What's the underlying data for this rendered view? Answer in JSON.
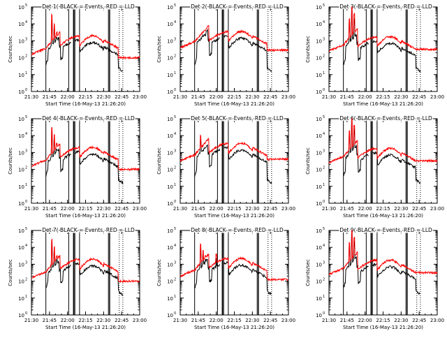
{
  "x_ticks": [
    "21:30",
    "21:45",
    "22:00",
    "22:15",
    "22:30",
    "22:45",
    "23:00"
  ],
  "y_tick_exponents": [
    "0",
    "1",
    "2",
    "3",
    "4",
    "5"
  ],
  "y_tick_base": "10",
  "ylabel": "Counts/sec",
  "xlabel": "Start Time (16-May-13 21:26:20)",
  "colors": {
    "events": "#000000",
    "lld": "#ff0000",
    "axes": "#000000"
  },
  "chart_data": [
    {
      "type": "line",
      "title": "Det 1(-BLACK = Events, RED = LLD",
      "profile": "a",
      "ylog": true,
      "ylim": [
        1,
        100000
      ],
      "xlim": [
        "21:30",
        "23:00"
      ]
    },
    {
      "type": "line",
      "title": "Det 2(-BLACK = Events, RED = LLD",
      "profile": "b",
      "ylog": true,
      "ylim": [
        1,
        100000
      ],
      "xlim": [
        "21:30",
        "23:00"
      ]
    },
    {
      "type": "line",
      "title": "Det 3(-BLACK = Events, RED = LLD",
      "profile": "c",
      "ylog": true,
      "ylim": [
        1,
        100000
      ],
      "xlim": [
        "21:30",
        "23:00"
      ]
    },
    {
      "type": "line",
      "title": "Det 4(-BLACK = Events, RED = LLD",
      "profile": "a",
      "ylog": true,
      "ylim": [
        1,
        100000
      ],
      "xlim": [
        "21:30",
        "23:00"
      ]
    },
    {
      "type": "line",
      "title": "Det 5(-BLACK = Events, RED = LLD",
      "profile": "d",
      "ylog": true,
      "ylim": [
        1,
        100000
      ],
      "xlim": [
        "21:30",
        "23:00"
      ]
    },
    {
      "type": "line",
      "title": "Det 6(-BLACK = Events, RED = LLD",
      "profile": "c",
      "ylog": true,
      "ylim": [
        1,
        100000
      ],
      "xlim": [
        "21:30",
        "23:00"
      ]
    },
    {
      "type": "line",
      "title": "Det 7(-BLACK = Events, RED = LLD",
      "profile": "a",
      "ylog": true,
      "ylim": [
        1,
        100000
      ],
      "xlim": [
        "21:30",
        "23:00"
      ]
    },
    {
      "type": "line",
      "title": "Det 8(-BLACK = Events, RED = LLD",
      "profile": "e",
      "ylog": true,
      "ylim": [
        1,
        100000
      ],
      "xlim": [
        "21:30",
        "23:00"
      ]
    },
    {
      "type": "line",
      "title": "Det 9(-BLACK = Events, RED = LLD",
      "profile": "c",
      "ylog": true,
      "ylim": [
        1,
        100000
      ],
      "xlim": [
        "21:30",
        "23:00"
      ]
    }
  ]
}
